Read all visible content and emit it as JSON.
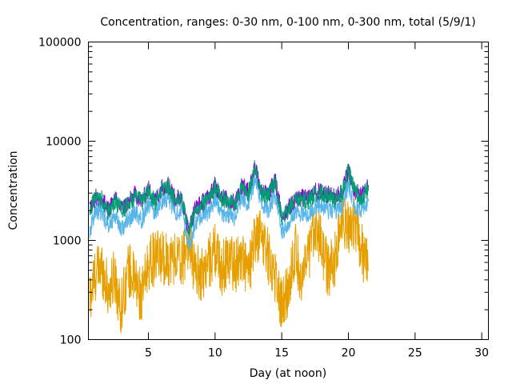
{
  "chart_data": {
    "type": "line",
    "title": "Concentration, ranges: 0-30 nm, 0-100 nm, 0-300 nm, total (5/9/1)",
    "xlabel": "Day (at noon)",
    "ylabel": "Concentration",
    "xlim": [
      0.5,
      30.5
    ],
    "ylim": [
      100,
      100000
    ],
    "yscale": "log",
    "grid": false,
    "legend": "none",
    "x_ticks": [
      5,
      10,
      15,
      20,
      25,
      30
    ],
    "x_tick_labels": [
      "5",
      "10",
      "15",
      "20",
      "25",
      "30"
    ],
    "y_ticks": [
      100,
      1000,
      10000,
      100000
    ],
    "y_tick_labels": [
      "100",
      "1000",
      "10000",
      "100000"
    ],
    "x_data_range": [
      0.6,
      21.5
    ],
    "series": [
      {
        "color": "#E69F00",
        "x": [
          0.6,
          1.0,
          1.5,
          2.0,
          2.5,
          2.9,
          3.5,
          4.0,
          4.5,
          5.0,
          5.5,
          6.0,
          6.5,
          7.0,
          7.5,
          8.0,
          8.5,
          9.0,
          9.5,
          10.0,
          10.5,
          11.0,
          11.5,
          12.0,
          12.5,
          13.0,
          13.5,
          14.0,
          14.5,
          15.0,
          15.5,
          16.0,
          16.5,
          17.0,
          17.5,
          18.0,
          18.5,
          19.0,
          19.5,
          20.0,
          20.5,
          21.0,
          21.5
        ],
        "values": [
          260,
          450,
          550,
          300,
          450,
          200,
          520,
          380,
          260,
          600,
          650,
          680,
          650,
          680,
          600,
          1000,
          500,
          450,
          600,
          800,
          500,
          700,
          550,
          700,
          450,
          1000,
          1200,
          680,
          450,
          220,
          320,
          850,
          380,
          650,
          1600,
          850,
          480,
          650,
          1700,
          1350,
          1600,
          800,
          500
        ]
      },
      {
        "color": "#56B4E9",
        "x": [
          0.6,
          1.0,
          1.5,
          2.0,
          2.5,
          3.0,
          3.5,
          4.0,
          4.5,
          5.0,
          5.5,
          6.0,
          6.5,
          7.0,
          7.5,
          8.0,
          8.5,
          9.0,
          9.5,
          10.0,
          10.5,
          11.0,
          11.5,
          12.0,
          12.5,
          13.0,
          13.5,
          14.0,
          14.5,
          15.0,
          15.5,
          16.0,
          16.5,
          17.0,
          17.5,
          18.0,
          18.5,
          19.0,
          19.5,
          20.0,
          20.5,
          21.0,
          21.5
        ],
        "values": [
          1200,
          2000,
          1900,
          1400,
          1800,
          1300,
          1600,
          1900,
          1600,
          2300,
          1900,
          2500,
          2700,
          1900,
          2000,
          900,
          1400,
          1800,
          1900,
          2600,
          1900,
          1800,
          1700,
          2800,
          2300,
          4200,
          2300,
          2000,
          3000,
          1200,
          1500,
          1900,
          1900,
          1800,
          2200,
          2300,
          2000,
          1900,
          2200,
          3600,
          2200,
          2000,
          2600
        ]
      },
      {
        "color": "#009E73",
        "x": [
          0.6,
          1.0,
          1.5,
          2.0,
          2.5,
          3.0,
          3.5,
          4.0,
          4.5,
          5.0,
          5.5,
          6.0,
          6.5,
          7.0,
          7.5,
          8.0,
          8.5,
          9.0,
          9.5,
          10.0,
          10.5,
          11.0,
          11.5,
          12.0,
          12.5,
          13.0,
          13.5,
          14.0,
          14.5,
          15.0,
          15.5,
          16.0,
          16.5,
          17.0,
          17.5,
          18.0,
          18.5,
          19.0,
          19.5,
          20.0,
          20.5,
          21.0,
          21.5
        ],
        "values": [
          2000,
          2600,
          2600,
          1900,
          2500,
          2000,
          2300,
          2800,
          2400,
          3200,
          2400,
          3300,
          3600,
          2500,
          2700,
          1200,
          2000,
          2300,
          2600,
          3500,
          2700,
          2400,
          2300,
          3500,
          3000,
          5500,
          3000,
          2800,
          4000,
          1700,
          2000,
          2500,
          2600,
          2500,
          3000,
          3000,
          2800,
          2600,
          3000,
          5000,
          3000,
          2700,
          3500
        ]
      },
      {
        "color": "#9400D3",
        "x": [
          0.6,
          1.0,
          1.5,
          2.0,
          2.5,
          3.0,
          3.5,
          4.0,
          4.5,
          5.0,
          5.5,
          6.0,
          6.5,
          7.0,
          7.5,
          8.0,
          8.5,
          9.0,
          9.5,
          10.0,
          10.5,
          11.0,
          11.5,
          12.0,
          12.5,
          13.0,
          13.5,
          14.0,
          14.5,
          15.0,
          15.5,
          16.0,
          16.5,
          17.0,
          17.5,
          18.0,
          18.5,
          19.0,
          19.5,
          20.0,
          20.5,
          21.0,
          21.5
        ],
        "values": [
          2100,
          2700,
          2700,
          2000,
          2600,
          2100,
          2400,
          2900,
          2500,
          3300,
          2500,
          3400,
          3700,
          2600,
          2800,
          1250,
          2100,
          2400,
          2700,
          3600,
          2800,
          2500,
          2400,
          3600,
          3100,
          5700,
          3100,
          2900,
          4100,
          1750,
          2100,
          2600,
          2700,
          2600,
          3100,
          3100,
          2900,
          2700,
          3100,
          5100,
          3100,
          2800,
          3600
        ]
      }
    ]
  }
}
